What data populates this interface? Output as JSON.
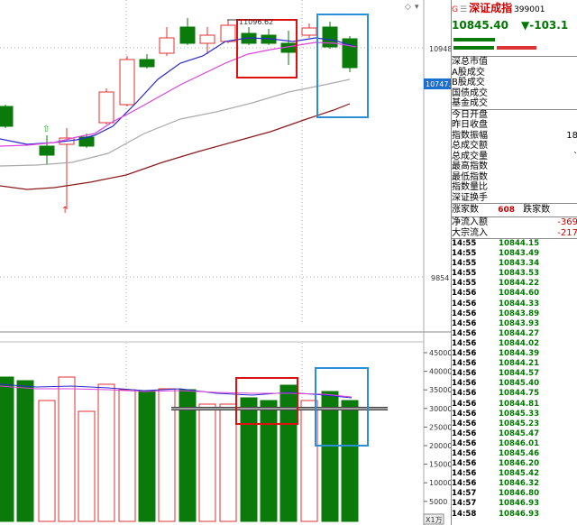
{
  "header": {
    "g_mark": "G",
    "grid_mark": "☰",
    "index_name": "深证成指",
    "index_code": "399001"
  },
  "quote": {
    "price": "10845.40",
    "change": "▼-103.1"
  },
  "chart": {
    "kline_high_label": "11096.62",
    "price_axis": [
      "10948",
      "9854"
    ],
    "current_price_tag": "10747.3",
    "volume_axis": [
      "45000",
      "40000",
      "35000",
      "30000",
      "25000",
      "20000",
      "15000",
      "10000",
      "5000"
    ],
    "volume_unit": "X1万"
  },
  "info_rows": [
    {
      "label": "深总市值",
      "value": ""
    },
    {
      "label": "A股成交",
      "value": ""
    },
    {
      "label": "B股成交",
      "value": ""
    },
    {
      "label": "国债成交",
      "value": ""
    },
    {
      "label": "基金成交",
      "value": ""
    }
  ],
  "stat_rows": [
    {
      "label": "今日开盘",
      "value": ""
    },
    {
      "label": "昨日收盘",
      "value": ""
    },
    {
      "label": "指数振幅",
      "value": "18"
    },
    {
      "label": "总成交额",
      "value": ""
    },
    {
      "label": "总成交量",
      "value": "`"
    },
    {
      "label": "最高指数",
      "value": ""
    },
    {
      "label": "最低指数",
      "value": ""
    },
    {
      "label": "指数量比",
      "value": ""
    },
    {
      "label": "深证换手",
      "value": ""
    }
  ],
  "breadth": {
    "up_label": "涨家数",
    "up_count": "608",
    "down_label": "跌家数"
  },
  "flow": [
    {
      "label": "净流入额",
      "value": "-369"
    },
    {
      "label": "大宗流入",
      "value": "-217"
    }
  ],
  "ticks": [
    {
      "time": "14:55",
      "price": "10844.15"
    },
    {
      "time": "14:55",
      "price": "10843.49"
    },
    {
      "time": "14:55",
      "price": "10843.34"
    },
    {
      "time": "14:55",
      "price": "10843.53"
    },
    {
      "time": "14:55",
      "price": "10844.22"
    },
    {
      "time": "14:56",
      "price": "10844.60"
    },
    {
      "time": "14:56",
      "price": "10844.33"
    },
    {
      "time": "14:56",
      "price": "10843.89"
    },
    {
      "time": "14:56",
      "price": "10843.93"
    },
    {
      "time": "14:56",
      "price": "10844.27"
    },
    {
      "time": "14:56",
      "price": "10844.02"
    },
    {
      "time": "14:56",
      "price": "10844.39"
    },
    {
      "time": "14:56",
      "price": "10844.21"
    },
    {
      "time": "14:56",
      "price": "10844.57"
    },
    {
      "time": "14:56",
      "price": "10845.40"
    },
    {
      "time": "14:56",
      "price": "10844.75"
    },
    {
      "time": "14:56",
      "price": "10844.81"
    },
    {
      "time": "14:56",
      "price": "10845.33"
    },
    {
      "time": "14:56",
      "price": "10845.23"
    },
    {
      "time": "14:56",
      "price": "10845.47"
    },
    {
      "time": "14:56",
      "price": "10846.01"
    },
    {
      "time": "14:56",
      "price": "10845.46"
    },
    {
      "time": "14:56",
      "price": "10846.20"
    },
    {
      "time": "14:56",
      "price": "10845.42"
    },
    {
      "time": "14:56",
      "price": "10846.32"
    },
    {
      "time": "14:57",
      "price": "10846.80"
    },
    {
      "time": "14:57",
      "price": "10846.93"
    },
    {
      "time": "14:58",
      "price": "10846.93"
    }
  ],
  "colors": {
    "up": "#e23030",
    "down": "#0a7a0a",
    "ma_blue": "#2a2acc",
    "ma_magenta": "#dd44dd",
    "ma_gray": "#aaaaaa",
    "ma_darkred": "#8b1a1a",
    "box_red": "#dd1111",
    "box_blue": "#2a8fd8"
  }
}
